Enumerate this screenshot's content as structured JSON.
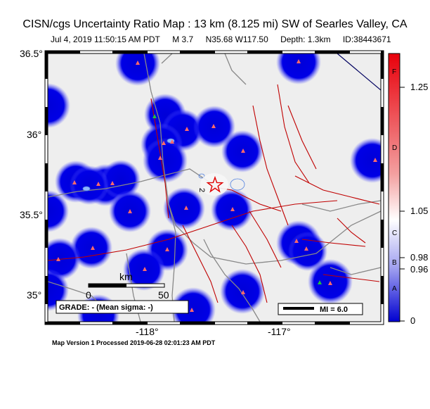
{
  "title": "CISN/cgs Uncertainty Ratio Map : 13 km (8.125 mi) SW of Searles Valley, CA",
  "event": {
    "datetime": "Jul  4, 2019 11:50:15 AM PDT",
    "magnitude": "M 3.7",
    "location": "N35.68 W117.50",
    "depth": "Depth: 1.3km",
    "id": "ID:38443671"
  },
  "axes": {
    "lat_labels": [
      "36.5°",
      "36°",
      "35.5°",
      "35°"
    ],
    "lon_labels": [
      "-118°",
      "-117°"
    ]
  },
  "scale_bar": {
    "unit": "km",
    "zero": "0",
    "max": "50"
  },
  "grade_box": "GRADE: - (Mean sigma: -)",
  "mi_legend": "MI = 6.0",
  "contour_label": "2",
  "colorbar": {
    "ticks": [
      "1.25",
      "1.05",
      "0.98",
      "0.96",
      "0"
    ],
    "letters": [
      "F",
      "D",
      "C",
      "B",
      "A"
    ],
    "top_color": "#e8000b",
    "bottom_color": "#0000d0"
  },
  "footer": "Map Version 1 Processed 2019-06-28 02:01:23 AM PDT",
  "colors": {
    "station_circle": "#0000e0",
    "fault": "#c00000",
    "road": "#888888",
    "epicenter": "#e00000",
    "station_marker": "#ff6a6a",
    "background": "#eeeeee"
  }
}
